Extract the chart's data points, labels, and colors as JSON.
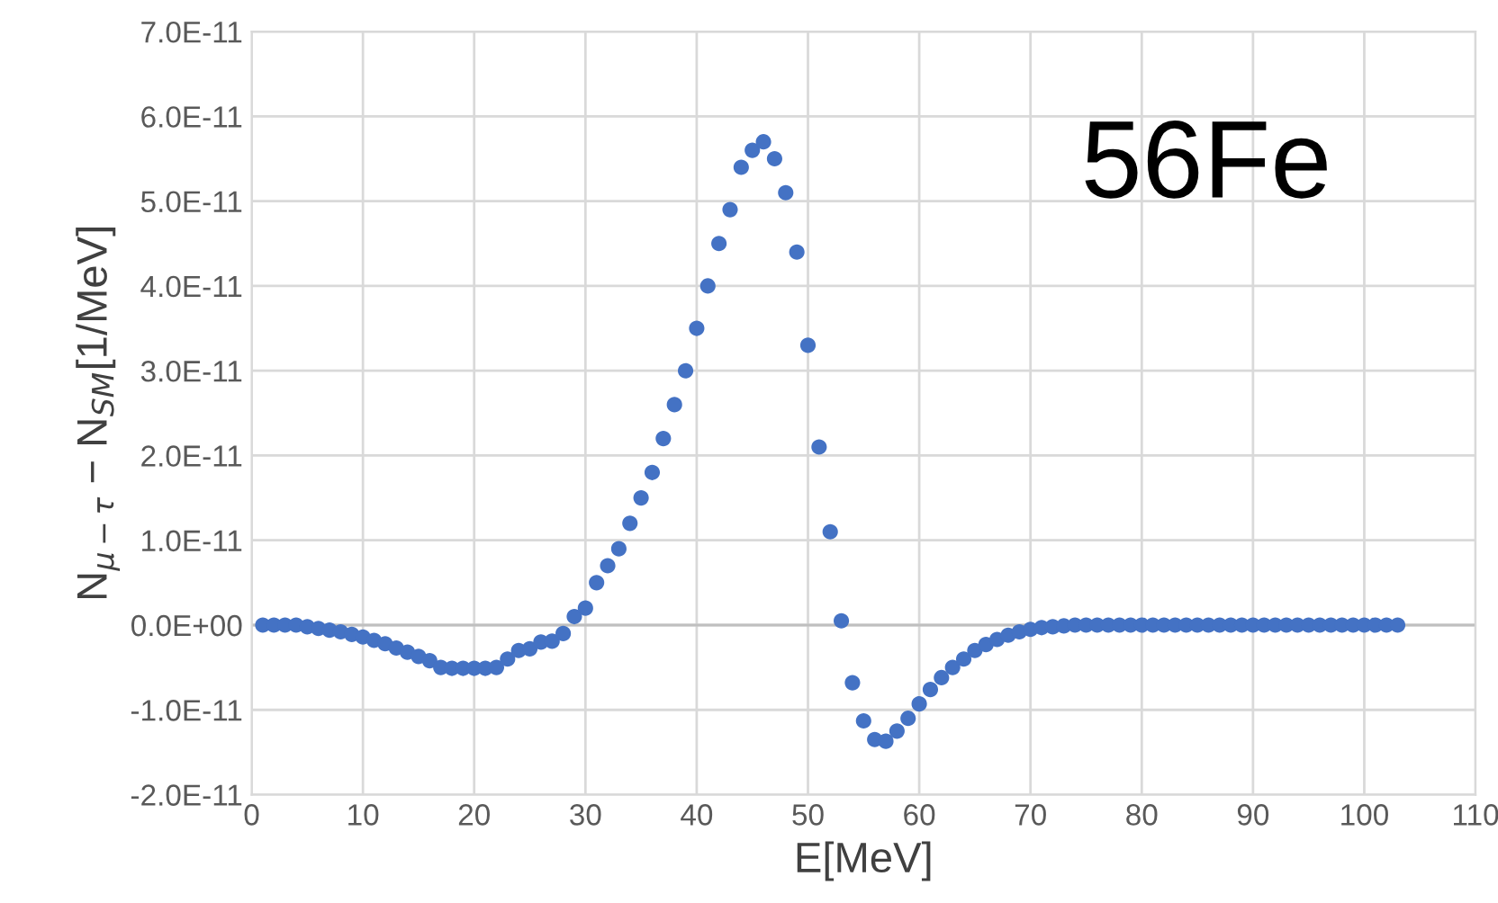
{
  "chart_data": {
    "type": "scatter",
    "title": "56Fe",
    "xlabel": "E[MeV]",
    "ylabel": "N$_{μ−τ}$ − N$_{SM}$[1/MeV]",
    "x": [
      1,
      2,
      3,
      4,
      5,
      6,
      7,
      8,
      9,
      10,
      11,
      12,
      13,
      14,
      15,
      16,
      17,
      18,
      19,
      20,
      21,
      22,
      23,
      24,
      25,
      26,
      27,
      28,
      29,
      30,
      31,
      32,
      33,
      34,
      35,
      36,
      37,
      38,
      39,
      40,
      41,
      42,
      43,
      44,
      45,
      46,
      47,
      48,
      49,
      50,
      51,
      52,
      53,
      54,
      55,
      56,
      57,
      58,
      59,
      60,
      61,
      62,
      63,
      64,
      65,
      66,
      67,
      68,
      69,
      70,
      71,
      72,
      73,
      74,
      75,
      76,
      77,
      78,
      79,
      80,
      81,
      82,
      83,
      84,
      85,
      86,
      87,
      88,
      89,
      90,
      91,
      92,
      93,
      94,
      95,
      96,
      97,
      98,
      99,
      100,
      101,
      102,
      103
    ],
    "series": [
      {
        "color": "#4472c4",
        "values": [
          0,
          0,
          0,
          0,
          -2e-13,
          -4e-13,
          -6e-13,
          -8e-13,
          -1.1e-12,
          -1.4e-12,
          -1.8e-12,
          -2.2e-12,
          -2.7e-12,
          -3.2e-12,
          -3.7e-12,
          -4.2e-12,
          -5e-12,
          -5.1e-12,
          -5.1e-12,
          -5.1e-12,
          -5.1e-12,
          -5e-12,
          -4e-12,
          -3e-12,
          -2.8e-12,
          -2e-12,
          -1.9e-12,
          -1e-12,
          1e-12,
          2e-12,
          5e-12,
          7e-12,
          9e-12,
          1.2e-11,
          1.5e-11,
          1.8e-11,
          2.2e-11,
          2.6e-11,
          3e-11,
          3.5e-11,
          4e-11,
          4.5e-11,
          4.9e-11,
          5.4e-11,
          5.6e-11,
          5.7e-11,
          5.5e-11,
          5.1e-11,
          4.4e-11,
          3.3e-11,
          2.1e-11,
          1.1e-11,
          5e-13,
          -6.8e-12,
          -1.13e-11,
          -1.35e-11,
          -1.37e-11,
          -1.25e-11,
          -1.1e-11,
          -9.3e-12,
          -7.6e-12,
          -6.2e-12,
          -5e-12,
          -4e-12,
          -3e-12,
          -2.3e-12,
          -1.7e-12,
          -1.2e-12,
          -8e-13,
          -5e-13,
          -3e-13,
          -2e-13,
          -1e-13,
          0,
          0,
          0,
          0,
          0,
          0,
          0,
          0,
          0,
          0,
          0,
          0,
          0,
          0,
          0,
          0,
          0,
          0,
          0,
          0,
          0,
          0,
          0,
          0,
          0,
          0,
          0,
          0,
          0,
          0
        ]
      }
    ],
    "xlim": [
      0,
      110
    ],
    "xticks": [
      0,
      10,
      20,
      30,
      40,
      50,
      60,
      70,
      80,
      90,
      100,
      110
    ],
    "ylim": [
      -2e-11,
      7e-11
    ],
    "yticks": [
      {
        "value": -2e-11,
        "label": "-2.0E-11"
      },
      {
        "value": -1e-11,
        "label": "-1.0E-11"
      },
      {
        "value": 0,
        "label": "0.0E+00"
      },
      {
        "value": 1e-11,
        "label": "1.0E-11"
      },
      {
        "value": 2e-11,
        "label": "2.0E-11"
      },
      {
        "value": 3e-11,
        "label": "3.0E-11"
      },
      {
        "value": 4e-11,
        "label": "4.0E-11"
      },
      {
        "value": 5e-11,
        "label": "5.0E-11"
      },
      {
        "value": 6e-11,
        "label": "6.0E-11"
      },
      {
        "value": 7e-11,
        "label": "7.0E-11"
      }
    ],
    "grid": true,
    "marker": "circle"
  }
}
